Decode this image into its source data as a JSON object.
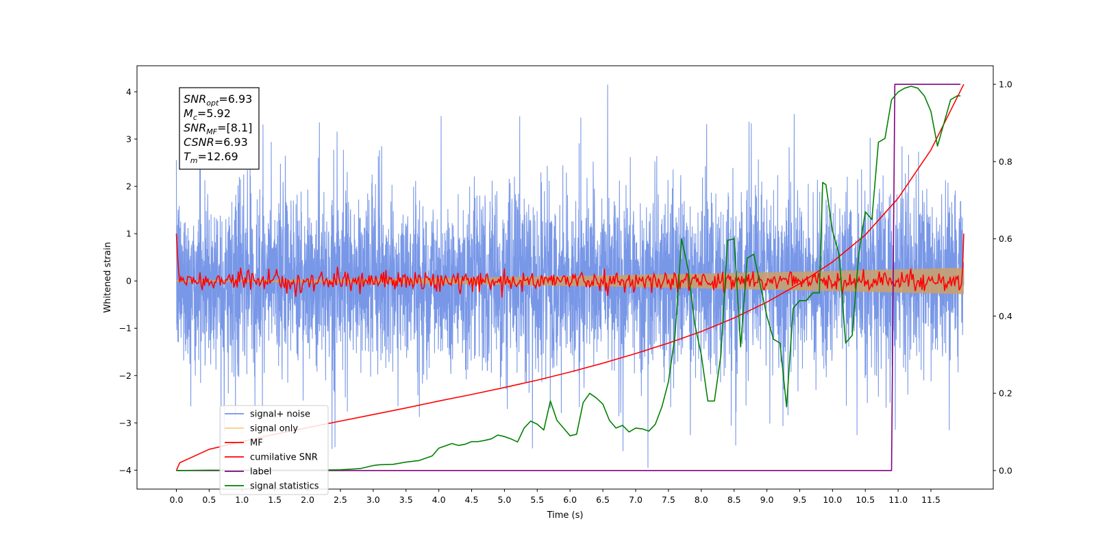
{
  "chart_data": {
    "type": "line",
    "xlabel": "Time (s)",
    "ylabel_left": "Whitened strain",
    "ylabel_right": "",
    "xlim": [
      -0.6,
      12.45
    ],
    "ylim_left": [
      -4.4,
      4.55
    ],
    "ylim_right": [
      -0.048,
      1.048
    ],
    "x_ticks": [
      0.0,
      0.5,
      1.0,
      1.5,
      2.0,
      2.5,
      3.0,
      3.5,
      4.0,
      4.5,
      5.0,
      5.5,
      6.0,
      6.5,
      7.0,
      7.5,
      8.0,
      8.5,
      9.0,
      9.5,
      10.0,
      10.5,
      11.0,
      11.5
    ],
    "x_tick_labels": [
      "0.0",
      "0.5",
      "1.0",
      "1.5",
      "2.0",
      "2.5",
      "3.0",
      "3.5",
      "4.0",
      "4.5",
      "5.0",
      "5.5",
      "6.0",
      "6.5",
      "7.0",
      "7.5",
      "8.0",
      "8.5",
      "9.0",
      "9.5",
      "10.0",
      "10.5",
      "11.0",
      "11.5"
    ],
    "y_left_ticks": [
      -4,
      -3,
      -2,
      -1,
      0,
      1,
      2,
      3,
      4
    ],
    "y_left_tick_labels": [
      "−4",
      "−3",
      "−2",
      "−1",
      "0",
      "1",
      "2",
      "3",
      "4"
    ],
    "y_right_ticks": [
      0.0,
      0.2,
      0.4,
      0.6,
      0.8,
      1.0
    ],
    "y_right_tick_labels": [
      "0.0",
      "0.2",
      "0.4",
      "0.6",
      "0.8",
      "1.0"
    ],
    "grid": false,
    "legend_position": "lower-left",
    "annotation": {
      "lines": [
        {
          "base": "SNR",
          "sub": "opt",
          "value": "=6.93"
        },
        {
          "base": "M",
          "sub": "c",
          "value": "=5.92"
        },
        {
          "base": "SNR",
          "sub": "MF",
          "value": "=[8.1]"
        },
        {
          "base": "CSNR",
          "sub": "",
          "value": "=6.93"
        },
        {
          "base": "T",
          "sub": "m",
          "value": "=12.69"
        }
      ]
    },
    "series": [
      {
        "name": "signal+ noise",
        "color": "#7191e6",
        "axis": "left",
        "style": "noise",
        "x_range": [
          0.0,
          12.0
        ],
        "noise_std": 1.0,
        "spike_max": 4.15,
        "spike_min": -3.95
      },
      {
        "name": "signal only",
        "color": "#ffcc80",
        "axis": "left",
        "style": "chirp",
        "x_range": [
          0.0,
          12.0
        ],
        "amplitude_start": 0.02,
        "amplitude_end": 0.28
      },
      {
        "name": "MF",
        "color": "#ff0000",
        "axis": "left",
        "style": "mf",
        "x_range": [
          0.0,
          12.0
        ],
        "start_value": 1.0,
        "noise_level": 0.1,
        "end_value": 1.0
      },
      {
        "name": "cumilative SNR",
        "color": "#ff0000",
        "axis": "right",
        "style": "line",
        "x": [
          0.0,
          0.05,
          0.5,
          1.0,
          1.5,
          2.0,
          2.5,
          3.0,
          3.5,
          4.0,
          4.5,
          5.0,
          5.5,
          6.0,
          6.5,
          7.0,
          7.5,
          8.0,
          8.5,
          9.0,
          9.5,
          10.0,
          10.5,
          11.0,
          11.5,
          12.0
        ],
        "y": [
          0.0,
          0.02,
          0.055,
          0.075,
          0.094,
          0.111,
          0.128,
          0.145,
          0.162,
          0.18,
          0.197,
          0.215,
          0.234,
          0.255,
          0.278,
          0.303,
          0.33,
          0.36,
          0.395,
          0.436,
          0.484,
          0.54,
          0.61,
          0.705,
          0.83,
          1.0
        ]
      },
      {
        "name": "label",
        "color": "#800080",
        "axis": "right",
        "style": "line",
        "x": [
          0.0,
          10.9,
          10.95,
          11.95
        ],
        "y": [
          0.0,
          0.0,
          1.0,
          1.0
        ]
      },
      {
        "name": "signal statistics",
        "color": "#008000",
        "axis": "right",
        "style": "line",
        "x": [
          0.0,
          0.5,
          1.0,
          1.5,
          2.0,
          2.5,
          2.8,
          3.0,
          3.1,
          3.3,
          3.5,
          3.7,
          3.8,
          3.9,
          4.0,
          4.1,
          4.2,
          4.3,
          4.4,
          4.5,
          4.6,
          4.7,
          4.8,
          4.9,
          5.0,
          5.1,
          5.2,
          5.3,
          5.4,
          5.5,
          5.6,
          5.7,
          5.8,
          5.9,
          6.0,
          6.1,
          6.2,
          6.3,
          6.4,
          6.5,
          6.6,
          6.7,
          6.8,
          6.9,
          7.0,
          7.1,
          7.2,
          7.3,
          7.4,
          7.5,
          7.6,
          7.7,
          7.8,
          7.9,
          8.0,
          8.1,
          8.2,
          8.3,
          8.4,
          8.5,
          8.6,
          8.7,
          8.8,
          8.9,
          9.0,
          9.1,
          9.2,
          9.3,
          9.4,
          9.5,
          9.6,
          9.7,
          9.8,
          9.85,
          9.9,
          10.0,
          10.1,
          10.2,
          10.3,
          10.4,
          10.5,
          10.6,
          10.7,
          10.8,
          10.9,
          11.0,
          11.1,
          11.2,
          11.3,
          11.4,
          11.5,
          11.6,
          11.7,
          11.8,
          11.9,
          11.95
        ],
        "y": [
          0.0,
          0.001,
          0.001,
          0.001,
          0.001,
          0.002,
          0.005,
          0.013,
          0.015,
          0.016,
          0.022,
          0.026,
          0.032,
          0.038,
          0.058,
          0.064,
          0.07,
          0.065,
          0.068,
          0.075,
          0.075,
          0.078,
          0.082,
          0.092,
          0.088,
          0.082,
          0.074,
          0.11,
          0.128,
          0.12,
          0.105,
          0.18,
          0.13,
          0.11,
          0.09,
          0.094,
          0.176,
          0.2,
          0.188,
          0.172,
          0.13,
          0.11,
          0.117,
          0.1,
          0.11,
          0.108,
          0.102,
          0.12,
          0.165,
          0.23,
          0.35,
          0.6,
          0.52,
          0.38,
          0.3,
          0.18,
          0.18,
          0.3,
          0.596,
          0.6,
          0.32,
          0.55,
          0.56,
          0.48,
          0.4,
          0.34,
          0.33,
          0.165,
          0.42,
          0.44,
          0.44,
          0.46,
          0.46,
          0.746,
          0.74,
          0.62,
          0.56,
          0.33,
          0.35,
          0.56,
          0.67,
          0.65,
          0.85,
          0.86,
          0.96,
          0.98,
          0.99,
          0.995,
          0.99,
          0.97,
          0.93,
          0.84,
          0.9,
          0.96,
          0.97,
          0.97
        ]
      }
    ]
  }
}
